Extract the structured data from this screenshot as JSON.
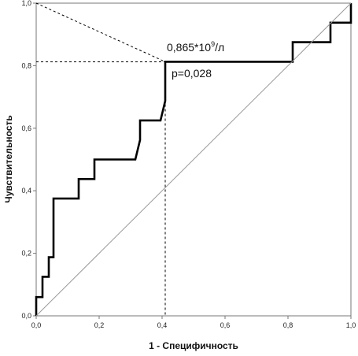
{
  "chart_data": {
    "type": "line",
    "xlabel": "1 - Специфичность",
    "ylabel": "Чувствительность",
    "xlim": [
      0,
      1
    ],
    "ylim": [
      0,
      1
    ],
    "grid": false,
    "x_ticks": [
      "0,0",
      "0,2",
      "0,4",
      "0,6",
      "0,8",
      "1,0"
    ],
    "y_ticks": [
      "0,0",
      "0,2",
      "0,4",
      "0,6",
      "0,8",
      "1,0"
    ],
    "series": [
      {
        "style": "roc-curve",
        "color": "#000000",
        "points": [
          [
            0,
            0
          ],
          [
            0,
            0.06
          ],
          [
            0.02,
            0.06
          ],
          [
            0.02,
            0.125
          ],
          [
            0.04,
            0.125
          ],
          [
            0.04,
            0.1875
          ],
          [
            0.055,
            0.1875
          ],
          [
            0.055,
            0.375
          ],
          [
            0.135,
            0.375
          ],
          [
            0.135,
            0.4375
          ],
          [
            0.185,
            0.4375
          ],
          [
            0.185,
            0.5
          ],
          [
            0.315,
            0.5
          ],
          [
            0.33,
            0.5625
          ],
          [
            0.33,
            0.625
          ],
          [
            0.395,
            0.625
          ],
          [
            0.41,
            0.6875
          ],
          [
            0.41,
            0.8125
          ],
          [
            0.815,
            0.8125
          ],
          [
            0.815,
            0.875
          ],
          [
            0.935,
            0.875
          ],
          [
            0.935,
            0.9375
          ],
          [
            1.0,
            0.9375
          ],
          [
            1.0,
            1.0
          ]
        ]
      },
      {
        "style": "reference-diagonal",
        "color": "#999999",
        "points": [
          [
            0,
            0
          ],
          [
            1,
            1
          ]
        ]
      }
    ],
    "cutoff_point": {
      "x": 0.41,
      "y": 0.8125
    },
    "annotations": {
      "threshold_main": "0,865*10",
      "threshold_sup": "9",
      "threshold_unit": "/л",
      "p_value": "p=0,028"
    }
  }
}
